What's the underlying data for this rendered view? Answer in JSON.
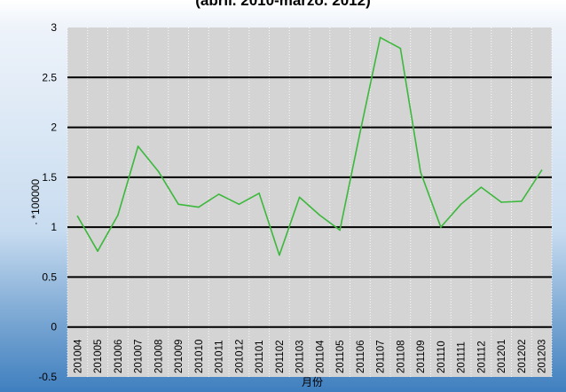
{
  "chart_data": {
    "type": "line",
    "title": "(abril. 2010-marzo. 2012)",
    "xlabel": "月份",
    "ylabel": "· *100000",
    "ylim": [
      -0.5,
      3
    ],
    "yticks": [
      -0.5,
      0,
      0.5,
      1,
      1.5,
      2,
      2.5,
      3
    ],
    "ytick_labels": [
      "-0.5",
      "0",
      "0.5",
      "1",
      "1.5",
      "2",
      "2.5",
      "3"
    ],
    "grid": true,
    "legend": "none",
    "categories": [
      "201004",
      "201005",
      "201006",
      "201007",
      "201008",
      "201009",
      "201010",
      "201011",
      "201012",
      "201101",
      "201102",
      "201103",
      "201104",
      "201105",
      "201106",
      "201107",
      "201108",
      "201109",
      "201110",
      "201111",
      "201112",
      "201201",
      "201202",
      "201203"
    ],
    "series": [
      {
        "values": [
          1.11,
          0.76,
          1.12,
          1.81,
          1.56,
          1.23,
          1.2,
          1.33,
          1.23,
          1.34,
          0.72,
          1.3,
          1.12,
          0.97,
          1.95,
          2.9,
          2.79,
          1.55,
          1.0,
          1.23,
          1.4,
          1.25,
          1.26,
          1.57
        ],
        "color": "#3cb83c"
      }
    ],
    "plot_background": "#d4d4d4",
    "gridline_color": "#000000"
  }
}
